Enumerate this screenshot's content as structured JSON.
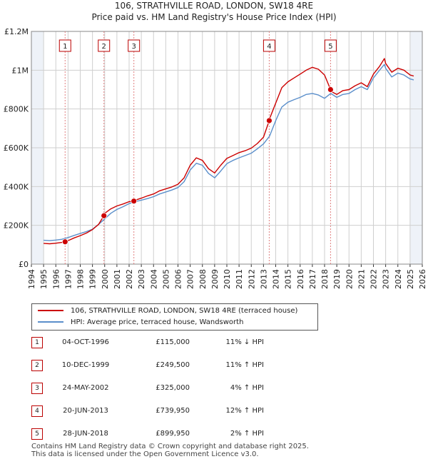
{
  "title": "106, STRATHVILLE ROAD, LONDON, SW18 4RE",
  "subtitle": "Price paid vs. HM Land Registry's House Price Index (HPI)",
  "colors": {
    "red": "#cc0000",
    "blue": "#5b8fcb",
    "grid": "#cfcfcf",
    "shade": "#eef2f8",
    "dash": "#e08080"
  },
  "legend": {
    "property": "106, STRATHVILLE ROAD, LONDON, SW18 4RE (terraced house)",
    "hpi": "HPI: Average price, terraced house, Wandsworth"
  },
  "sales": [
    {
      "num": "1",
      "date": "04-OCT-1996",
      "price": "£115,000",
      "hpi": "11% ↓ HPI"
    },
    {
      "num": "2",
      "date": "10-DEC-1999",
      "price": "£249,500",
      "hpi": "11% ↑ HPI"
    },
    {
      "num": "3",
      "date": "24-MAY-2002",
      "price": "£325,000",
      "hpi": "4% ↑ HPI"
    },
    {
      "num": "4",
      "date": "20-JUN-2013",
      "price": "£739,950",
      "hpi": "12% ↑ HPI"
    },
    {
      "num": "5",
      "date": "28-JUN-2018",
      "price": "£899,950",
      "hpi": "2% ↑ HPI"
    }
  ],
  "footer": {
    "line1": "Contains HM Land Registry data © Crown copyright and database right 2025.",
    "line2": "This data is licensed under the Open Government Licence v3.0."
  },
  "chart_data": {
    "type": "line",
    "title": "106, STRATHVILLE ROAD, LONDON, SW18 4RE",
    "subtitle": "Price paid vs. HM Land Registry's House Price Index (HPI)",
    "xlim": [
      1994,
      2026
    ],
    "ylim": [
      0,
      1200000
    ],
    "x_ticks": [
      1994,
      1995,
      1996,
      1997,
      1998,
      1999,
      2000,
      2001,
      2002,
      2003,
      2004,
      2005,
      2006,
      2007,
      2008,
      2009,
      2010,
      2011,
      2012,
      2013,
      2014,
      2015,
      2016,
      2017,
      2018,
      2019,
      2020,
      2021,
      2022,
      2023,
      2024,
      2025,
      2026
    ],
    "y_ticks": [
      {
        "value": 0,
        "label": "£0"
      },
      {
        "value": 200000,
        "label": "£200K"
      },
      {
        "value": 400000,
        "label": "£400K"
      },
      {
        "value": 600000,
        "label": "£600K"
      },
      {
        "value": 800000,
        "label": "£800K"
      },
      {
        "value": 1000000,
        "label": "£1M"
      },
      {
        "value": 1200000,
        "label": "£1.2M"
      }
    ],
    "shaded_ranges": [
      [
        1994,
        1995
      ],
      [
        2025,
        2026
      ]
    ],
    "markers": [
      {
        "label": "1",
        "x": 1996.76,
        "y": 115000
      },
      {
        "label": "2",
        "x": 1999.94,
        "y": 249500
      },
      {
        "label": "3",
        "x": 2002.39,
        "y": 325000
      },
      {
        "label": "4",
        "x": 2013.47,
        "y": 739950
      },
      {
        "label": "5",
        "x": 2018.49,
        "y": 899950
      }
    ],
    "series": [
      {
        "name": "106, STRATHVILLE ROAD, LONDON, SW18 4RE (terraced house)",
        "color": "#cc0000",
        "x": [
          1995.0,
          1995.5,
          1996.0,
          1996.5,
          1996.76,
          1997.0,
          1997.5,
          1998.0,
          1998.5,
          1999.0,
          1999.5,
          1999.94,
          2000.0,
          2000.5,
          2001.0,
          2001.5,
          2002.0,
          2002.39,
          2002.5,
          2003.0,
          2003.5,
          2004.0,
          2004.5,
          2005.0,
          2005.5,
          2006.0,
          2006.5,
          2007.0,
          2007.5,
          2008.0,
          2008.5,
          2009.0,
          2009.5,
          2010.0,
          2010.5,
          2011.0,
          2011.5,
          2012.0,
          2012.5,
          2013.0,
          2013.47,
          2013.5,
          2014.0,
          2014.5,
          2015.0,
          2015.5,
          2016.0,
          2016.5,
          2017.0,
          2017.5,
          2018.0,
          2018.49,
          2018.5,
          2019.0,
          2019.5,
          2020.0,
          2020.5,
          2021.0,
          2021.5,
          2022.0,
          2022.5,
          2022.9,
          2023.0,
          2023.5,
          2024.0,
          2024.5,
          2025.0,
          2025.3
        ],
        "y": [
          107000,
          105000,
          108000,
          112000,
          115000,
          121000,
          135000,
          147000,
          160000,
          178000,
          205000,
          249500,
          262000,
          285000,
          300000,
          310000,
          322000,
          325000,
          330000,
          340000,
          352000,
          362000,
          378000,
          388000,
          398000,
          412000,
          445000,
          510000,
          548000,
          535000,
          492000,
          470000,
          510000,
          545000,
          560000,
          575000,
          585000,
          598000,
          622000,
          655000,
          739950,
          750000,
          830000,
          910000,
          940000,
          960000,
          980000,
          1000000,
          1015000,
          1005000,
          975000,
          899950,
          892000,
          875000,
          895000,
          900000,
          920000,
          935000,
          915000,
          980000,
          1020000,
          1060000,
          1035000,
          990000,
          1010000,
          1000000,
          975000,
          970000
        ]
      },
      {
        "name": "HPI: Average price, terraced house, Wandsworth",
        "color": "#5b8fcb",
        "x": [
          1995.0,
          1995.5,
          1996.0,
          1996.5,
          1997.0,
          1997.5,
          1998.0,
          1998.5,
          1999.0,
          1999.5,
          2000.0,
          2000.5,
          2001.0,
          2001.5,
          2002.0,
          2002.5,
          2003.0,
          2003.5,
          2004.0,
          2004.5,
          2005.0,
          2005.5,
          2006.0,
          2006.5,
          2007.0,
          2007.5,
          2008.0,
          2008.5,
          2009.0,
          2009.5,
          2010.0,
          2010.5,
          2011.0,
          2011.5,
          2012.0,
          2012.5,
          2013.0,
          2013.5,
          2014.0,
          2014.5,
          2015.0,
          2015.5,
          2016.0,
          2016.5,
          2017.0,
          2017.5,
          2018.0,
          2018.5,
          2019.0,
          2019.5,
          2020.0,
          2020.5,
          2021.0,
          2021.5,
          2022.0,
          2022.5,
          2022.9,
          2023.0,
          2023.5,
          2024.0,
          2024.5,
          2025.0,
          2025.3
        ],
        "y": [
          123000,
          121000,
          124000,
          128000,
          137000,
          148000,
          158000,
          168000,
          180000,
          205000,
          233000,
          262000,
          282000,
          296000,
          312000,
          322000,
          330000,
          338000,
          348000,
          362000,
          372000,
          382000,
          395000,
          425000,
          485000,
          520000,
          510000,
          468000,
          445000,
          480000,
          518000,
          535000,
          548000,
          560000,
          572000,
          595000,
          620000,
          660000,
          740000,
          810000,
          835000,
          848000,
          860000,
          875000,
          880000,
          872000,
          855000,
          880000,
          860000,
          875000,
          880000,
          900000,
          915000,
          900000,
          960000,
          1000000,
          1030000,
          1010000,
          965000,
          985000,
          975000,
          955000,
          950000
        ]
      }
    ]
  }
}
